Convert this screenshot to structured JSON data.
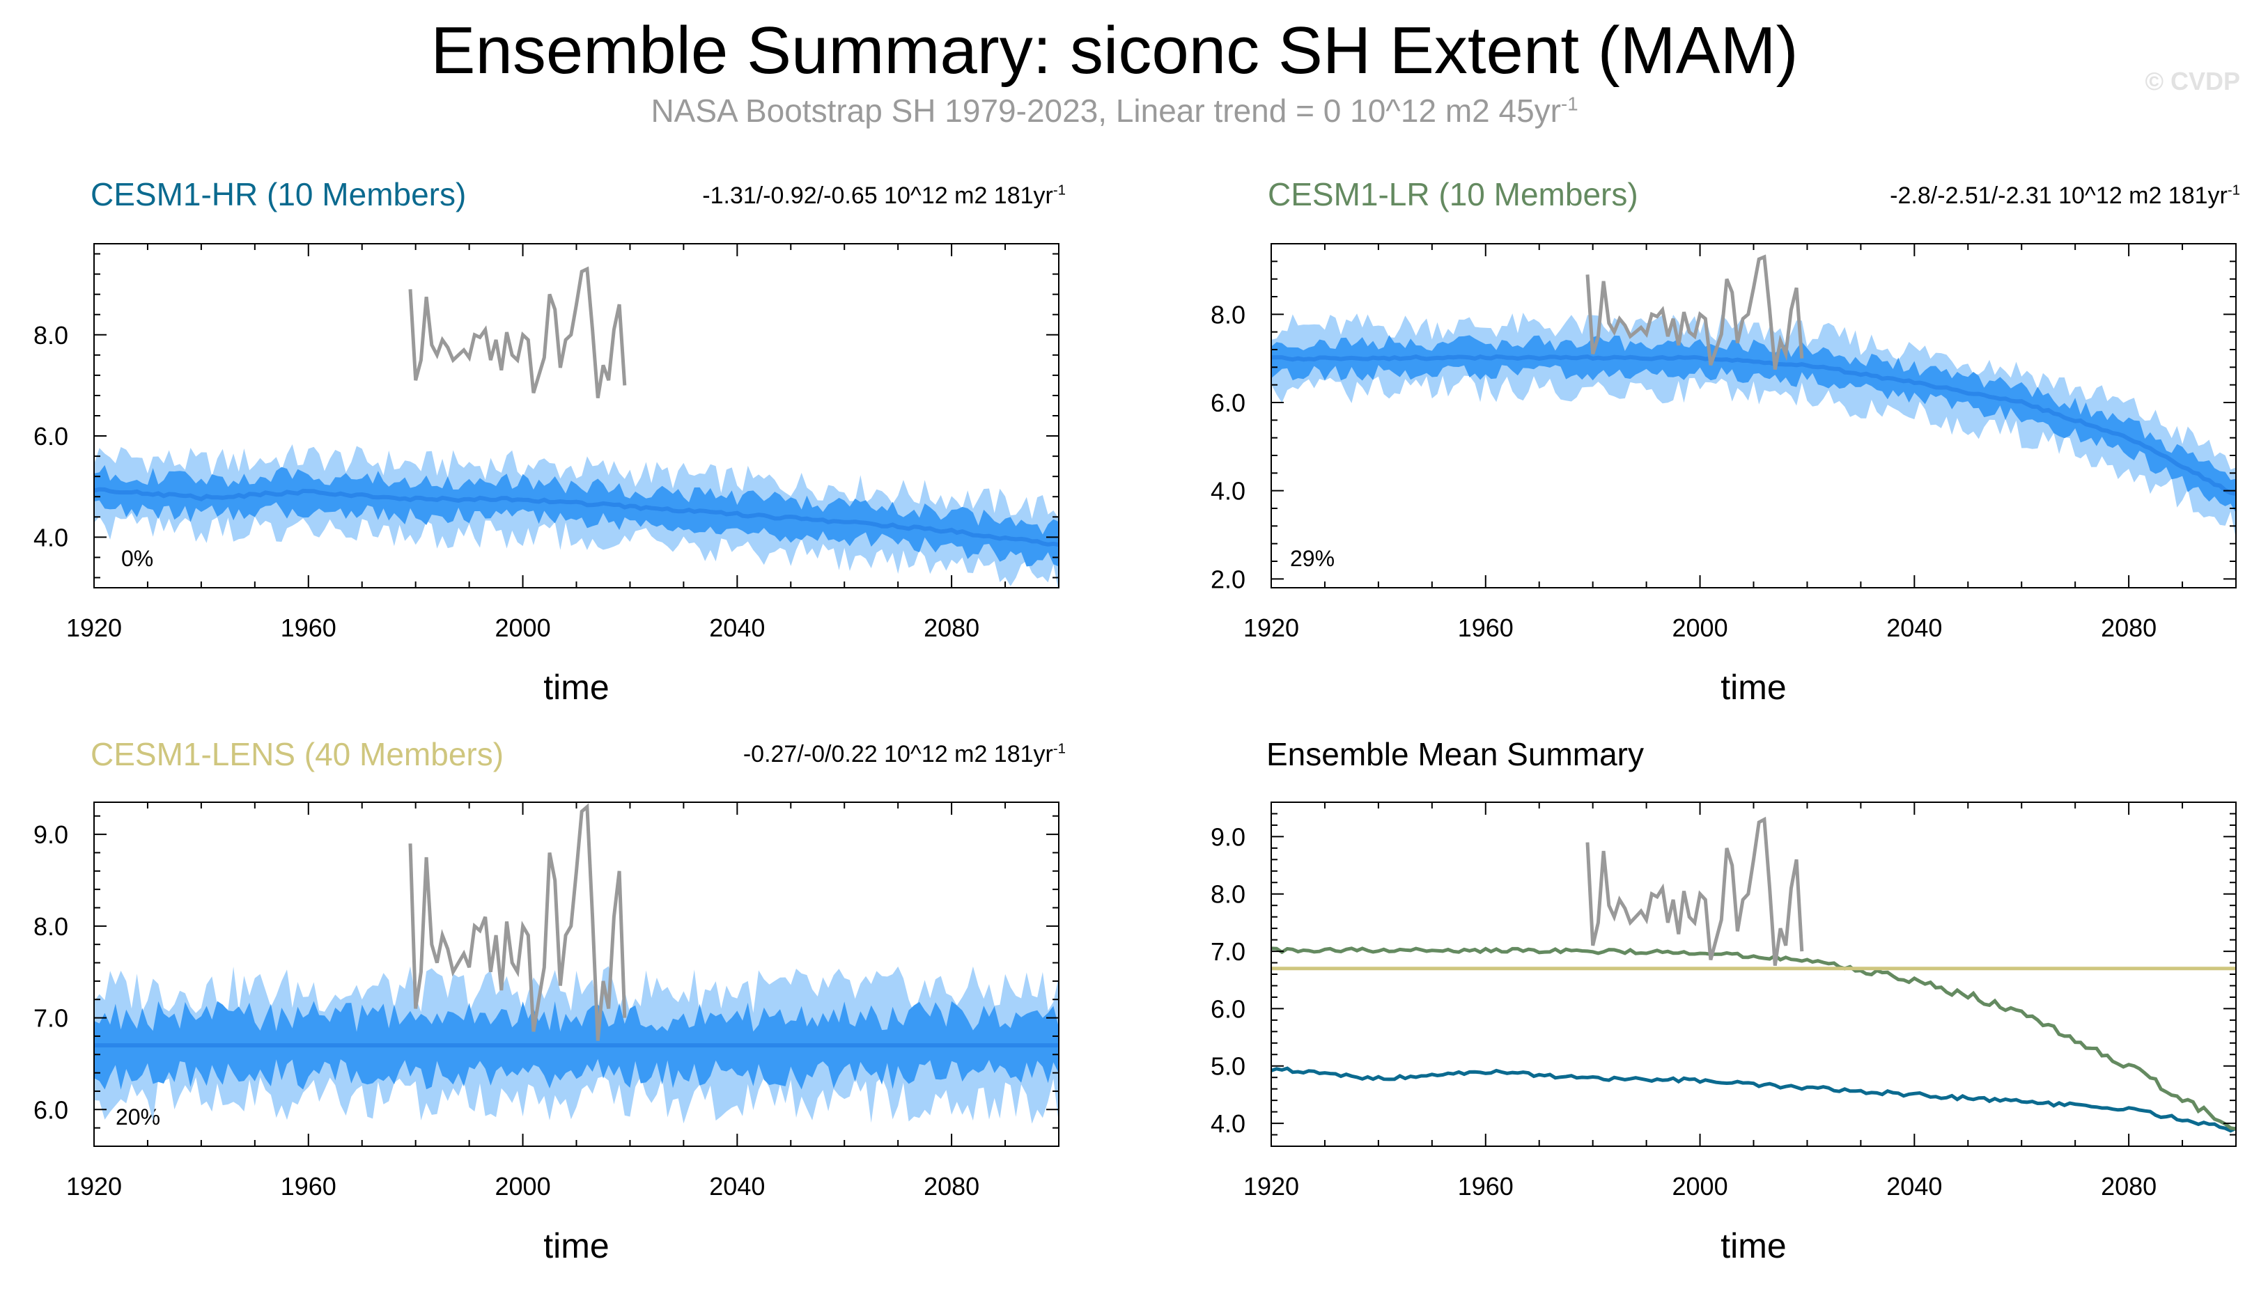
{
  "title": "Ensemble Summary: siconc SH Extent (MAM)",
  "subtitle": {
    "text": "NASA Bootstrap SH 1979-2023, Linear trend = 0 10^12 m2 45yr",
    "exponent": "-1"
  },
  "credit": "© CVDP",
  "colors": {
    "hr": "#0b6a8f",
    "lr": "#648a60",
    "lens": "#cfc67e",
    "spread_outer": "#a6d2fb",
    "spread_inner": "#3a9af5",
    "ens_mean_line": "#2a86ea",
    "obs": "#999999",
    "summary_title": "#000000"
  },
  "chart_data": [
    {
      "id": "hr",
      "type": "area",
      "title": "CESM1-HR (10 Members)",
      "trend_text": "-1.31/-0.92/-0.65 10^12 m2 181yr",
      "trend_exp": "-1",
      "percent_label": "0%",
      "xlabel": "time",
      "xlim": [
        1920,
        2100
      ],
      "ylim": [
        3.0,
        9.8
      ],
      "xticks": [
        1920,
        1960,
        2000,
        2040,
        2080
      ],
      "yticks": [
        "4.0",
        "6.0",
        "8.0"
      ],
      "mean_anchors": [
        [
          1920,
          4.95
        ],
        [
          1940,
          4.78
        ],
        [
          1960,
          4.9
        ],
        [
          1980,
          4.75
        ],
        [
          2000,
          4.75
        ],
        [
          2020,
          4.6
        ],
        [
          2040,
          4.45
        ],
        [
          2060,
          4.3
        ],
        [
          2080,
          4.12
        ],
        [
          2100,
          3.85
        ]
      ],
      "inner_spread": 0.45,
      "outer_spread": 0.85
    },
    {
      "id": "lr",
      "type": "area",
      "title": "CESM1-LR (10 Members)",
      "trend_text": "-2.8/-2.51/-2.31 10^12 m2 181yr",
      "trend_exp": "-1",
      "percent_label": "29%",
      "xlabel": "time",
      "xlim": [
        1920,
        2100
      ],
      "ylim": [
        1.8,
        9.6
      ],
      "xticks": [
        1920,
        1960,
        2000,
        2040,
        2080
      ],
      "yticks": [
        "2.0",
        "4.0",
        "6.0",
        "8.0"
      ],
      "mean_anchors": [
        [
          1920,
          7.0
        ],
        [
          1960,
          7.02
        ],
        [
          2000,
          7.0
        ],
        [
          2020,
          6.85
        ],
        [
          2040,
          6.45
        ],
        [
          2060,
          6.0
        ],
        [
          2080,
          5.2
        ],
        [
          2100,
          3.9
        ]
      ],
      "inner_spread": 0.45,
      "outer_spread": 0.9
    },
    {
      "id": "lens",
      "type": "area",
      "title": "CESM1-LENS (40 Members)",
      "trend_text": "-0.27/-0/0.22 10^12 m2 181yr",
      "trend_exp": "-1",
      "percent_label": "20%",
      "xlabel": "time",
      "xlim": [
        1920,
        2100
      ],
      "ylim": [
        5.6,
        9.35
      ],
      "xticks": [
        1920,
        1960,
        2000,
        2040,
        2080
      ],
      "yticks": [
        "6.0",
        "7.0",
        "8.0",
        "9.0"
      ],
      "mean_anchors": [
        [
          1920,
          6.7
        ],
        [
          2100,
          6.7
        ]
      ],
      "inner_spread": 0.42,
      "outer_spread": 0.75
    },
    {
      "id": "summary",
      "type": "line",
      "title": "Ensemble Mean Summary",
      "xlabel": "time",
      "xlim": [
        1920,
        2100
      ],
      "ylim": [
        3.6,
        9.6
      ],
      "xticks": [
        1920,
        1960,
        2000,
        2040,
        2080
      ],
      "yticks": [
        "4.0",
        "5.0",
        "6.0",
        "7.0",
        "8.0",
        "9.0"
      ],
      "series": [
        {
          "name": "CESM1-HR",
          "anchors": [
            [
              1920,
              4.95
            ],
            [
              1940,
              4.78
            ],
            [
              1960,
              4.9
            ],
            [
              1980,
              4.78
            ],
            [
              2000,
              4.75
            ],
            [
              2020,
              4.62
            ],
            [
              2040,
              4.5
            ],
            [
              2060,
              4.38
            ],
            [
              2080,
              4.25
            ],
            [
              2100,
              3.88
            ]
          ]
        },
        {
          "name": "CESM1-LR",
          "anchors": [
            [
              1920,
              7.02
            ],
            [
              1960,
              7.02
            ],
            [
              2000,
              6.98
            ],
            [
              2020,
              6.85
            ],
            [
              2040,
              6.5
            ],
            [
              2060,
              5.95
            ],
            [
              2080,
              5.0
            ],
            [
              2100,
              3.88
            ]
          ]
        },
        {
          "name": "CESM1-LENS",
          "anchors": [
            [
              1920,
              6.7
            ],
            [
              2100,
              6.7
            ]
          ]
        }
      ]
    }
  ],
  "observations": {
    "name": "NASA Bootstrap",
    "years": [
      1979,
      1980,
      1981,
      1982,
      1983,
      1984,
      1985,
      1986,
      1987,
      1988,
      1989,
      1990,
      1991,
      1992,
      1993,
      1994,
      1995,
      1996,
      1997,
      1998,
      1999,
      2000,
      2001,
      2002,
      2003,
      2004,
      2005,
      2006,
      2007,
      2008,
      2009,
      2010,
      2011,
      2012,
      2013,
      2014,
      2015,
      2016,
      2017,
      2018,
      2019,
      2020,
      2021,
      2022,
      2023
    ],
    "values": [
      8.9,
      7.1,
      7.5,
      8.75,
      7.8,
      7.6,
      7.9,
      7.75,
      7.5,
      7.6,
      7.7,
      7.55,
      8.0,
      7.95,
      8.1,
      7.5,
      7.9,
      7.3,
      8.05,
      7.6,
      7.5,
      8.0,
      7.9,
      6.85,
      7.2,
      7.55,
      8.8,
      8.5,
      7.35,
      7.9,
      8.0,
      8.6,
      9.25,
      9.3,
      8.1,
      6.75,
      7.4,
      7.1,
      8.1,
      8.6,
      7.0,
      null,
      null,
      null,
      null
    ]
  }
}
